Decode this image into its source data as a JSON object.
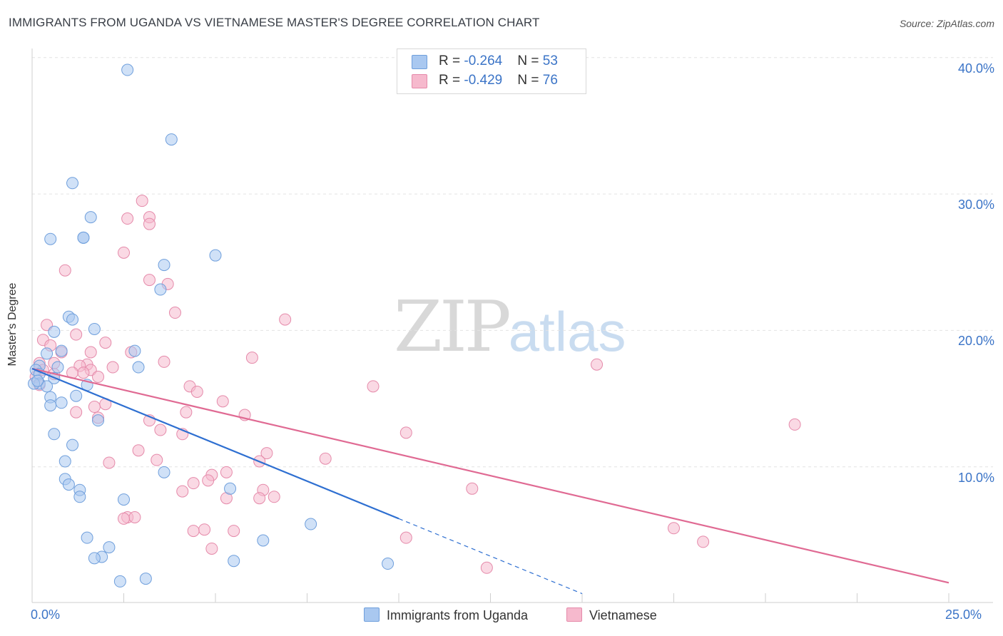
{
  "title": "IMMIGRANTS FROM UGANDA VS VIETNAMESE MASTER'S DEGREE CORRELATION CHART",
  "source": "Source: ZipAtlas.com",
  "watermark": {
    "zip": "ZIP",
    "atlas": "atlas"
  },
  "legend": {
    "rows": [
      {
        "r_label": "R = ",
        "r_value": "-0.264",
        "n_label": "N = ",
        "n_value": "53",
        "color": "#a9c8f0"
      },
      {
        "r_label": "R = ",
        "r_value": "-0.429",
        "n_label": "N = ",
        "n_value": "76",
        "color": "#f6b9cd"
      }
    ]
  },
  "bottom_legend": {
    "uganda": "Immigrants from Uganda",
    "vietnamese": "Vietnamese"
  },
  "colors": {
    "uganda_fill": "#a9c8f0",
    "uganda_stroke": "#6f9fdc",
    "uganda_line": "#2e6fd1",
    "viet_fill": "#f6b9cd",
    "viet_stroke": "#e58aaa",
    "viet_line": "#e06a93",
    "grid": "#e3e3e3",
    "axis_text": "#3b74c7"
  },
  "chart_data": {
    "type": "scatter",
    "title": "IMMIGRANTS FROM UGANDA VS VIETNAMESE MASTER'S DEGREE CORRELATION CHART",
    "xlabel": "",
    "ylabel": "Master's Degree",
    "xlim": [
      0,
      25
    ],
    "ylim": [
      0,
      40
    ],
    "x_tick_labels": [
      "0.0%",
      "25.0%"
    ],
    "y_ticks": [
      10,
      20,
      30,
      40
    ],
    "y_tick_labels": [
      "10.0%",
      "20.0%",
      "30.0%",
      "40.0%"
    ],
    "series": [
      {
        "name": "Immigrants from Uganda",
        "r": -0.264,
        "n": 53,
        "trend": {
          "x_start": 0,
          "y_start": 17.2,
          "x_solid_end": 10.0,
          "x_dash_end": 15.0
        },
        "points": [
          [
            2.6,
            39.1
          ],
          [
            3.8,
            34.0
          ],
          [
            1.1,
            30.8
          ],
          [
            1.6,
            28.3
          ],
          [
            0.5,
            26.7
          ],
          [
            1.4,
            26.8
          ],
          [
            1.4,
            26.8
          ],
          [
            5.0,
            25.5
          ],
          [
            3.6,
            24.8
          ],
          [
            3.5,
            23.0
          ],
          [
            1.0,
            21.0
          ],
          [
            1.1,
            20.8
          ],
          [
            1.7,
            20.1
          ],
          [
            0.6,
            19.9
          ],
          [
            0.4,
            18.3
          ],
          [
            0.8,
            18.5
          ],
          [
            2.8,
            18.5
          ],
          [
            2.9,
            17.3
          ],
          [
            0.7,
            17.3
          ],
          [
            0.2,
            17.4
          ],
          [
            0.1,
            17.1
          ],
          [
            0.2,
            16.8
          ],
          [
            0.6,
            16.5
          ],
          [
            0.2,
            16.1
          ],
          [
            0.4,
            15.9
          ],
          [
            1.5,
            16.0
          ],
          [
            0.5,
            15.1
          ],
          [
            1.2,
            15.2
          ],
          [
            0.5,
            14.5
          ],
          [
            0.8,
            14.7
          ],
          [
            1.8,
            13.4
          ],
          [
            0.6,
            12.4
          ],
          [
            1.1,
            11.6
          ],
          [
            0.9,
            10.4
          ],
          [
            3.6,
            9.6
          ],
          [
            0.9,
            9.1
          ],
          [
            1.0,
            8.7
          ],
          [
            5.4,
            8.4
          ],
          [
            1.3,
            8.3
          ],
          [
            1.3,
            7.8
          ],
          [
            2.5,
            7.6
          ],
          [
            7.6,
            5.8
          ],
          [
            1.5,
            4.8
          ],
          [
            6.3,
            4.6
          ],
          [
            2.1,
            4.1
          ],
          [
            1.9,
            3.4
          ],
          [
            1.7,
            3.3
          ],
          [
            5.5,
            3.1
          ],
          [
            9.7,
            2.9
          ],
          [
            3.1,
            1.8
          ],
          [
            2.4,
            1.6
          ],
          [
            0.05,
            16.1
          ],
          [
            0.15,
            16.3
          ]
        ]
      },
      {
        "name": "Vietnamese",
        "r": -0.429,
        "n": 76,
        "trend": {
          "x_start": 0,
          "y_start": 17.2,
          "x_end": 25.0,
          "y_end": 1.5
        },
        "points": [
          [
            3.0,
            29.5
          ],
          [
            2.6,
            28.2
          ],
          [
            3.2,
            28.3
          ],
          [
            3.2,
            27.8
          ],
          [
            2.5,
            25.7
          ],
          [
            0.9,
            24.4
          ],
          [
            3.2,
            23.7
          ],
          [
            3.7,
            23.4
          ],
          [
            3.9,
            21.3
          ],
          [
            6.9,
            20.8
          ],
          [
            0.4,
            20.4
          ],
          [
            1.2,
            19.7
          ],
          [
            0.3,
            19.3
          ],
          [
            2.0,
            19.1
          ],
          [
            0.5,
            18.9
          ],
          [
            0.8,
            18.4
          ],
          [
            1.6,
            18.4
          ],
          [
            2.7,
            18.4
          ],
          [
            6.0,
            18.0
          ],
          [
            3.6,
            17.7
          ],
          [
            0.2,
            17.6
          ],
          [
            1.5,
            17.5
          ],
          [
            0.6,
            17.6
          ],
          [
            1.3,
            17.4
          ],
          [
            2.2,
            17.3
          ],
          [
            15.4,
            17.5
          ],
          [
            0.3,
            17.1
          ],
          [
            1.6,
            17.1
          ],
          [
            1.1,
            16.9
          ],
          [
            1.4,
            16.9
          ],
          [
            0.6,
            16.8
          ],
          [
            1.8,
            16.6
          ],
          [
            0.1,
            16.6
          ],
          [
            0.2,
            16.0
          ],
          [
            4.3,
            15.9
          ],
          [
            9.3,
            15.9
          ],
          [
            4.5,
            15.5
          ],
          [
            5.2,
            14.8
          ],
          [
            2.0,
            14.6
          ],
          [
            1.7,
            14.4
          ],
          [
            1.2,
            14.0
          ],
          [
            4.2,
            14.0
          ],
          [
            5.8,
            13.8
          ],
          [
            1.8,
            13.6
          ],
          [
            3.2,
            13.4
          ],
          [
            20.8,
            13.1
          ],
          [
            3.5,
            12.7
          ],
          [
            4.1,
            12.4
          ],
          [
            10.2,
            12.5
          ],
          [
            2.9,
            11.2
          ],
          [
            6.4,
            11.0
          ],
          [
            8.0,
            10.6
          ],
          [
            3.4,
            10.5
          ],
          [
            6.2,
            10.4
          ],
          [
            2.1,
            10.3
          ],
          [
            5.3,
            9.6
          ],
          [
            4.9,
            9.4
          ],
          [
            4.8,
            9.0
          ],
          [
            4.4,
            8.8
          ],
          [
            6.3,
            8.3
          ],
          [
            4.1,
            8.2
          ],
          [
            12.0,
            8.4
          ],
          [
            6.6,
            7.8
          ],
          [
            6.2,
            7.7
          ],
          [
            5.3,
            7.7
          ],
          [
            2.6,
            6.3
          ],
          [
            2.8,
            6.3
          ],
          [
            2.5,
            6.2
          ],
          [
            4.7,
            5.4
          ],
          [
            5.5,
            5.3
          ],
          [
            17.5,
            5.5
          ],
          [
            4.4,
            5.3
          ],
          [
            10.2,
            4.8
          ],
          [
            18.3,
            4.5
          ],
          [
            4.9,
            4.0
          ],
          [
            12.4,
            2.6
          ]
        ]
      }
    ]
  }
}
